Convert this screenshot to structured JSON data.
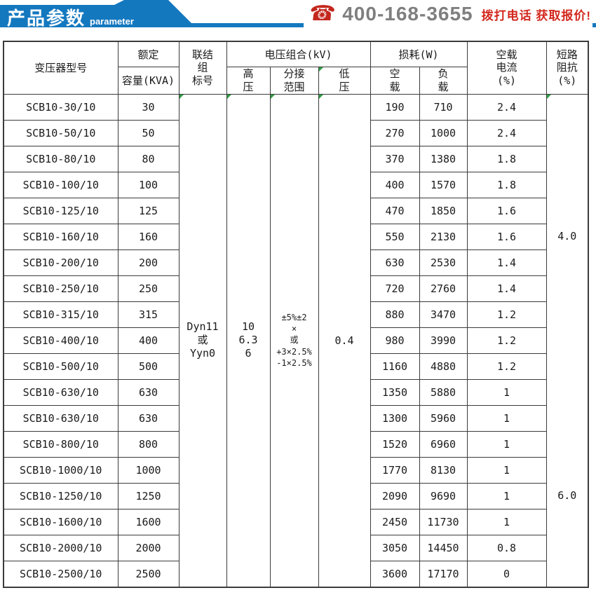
{
  "banner": {
    "title": "产品参数",
    "subtitle": "parameter",
    "phone": "400-168-3655",
    "cta": "拨打电话 获取报价!",
    "colors": {
      "banner_blue": "#1478bf",
      "phone_gray": "#7f7f7f",
      "cta_red": "#d3281e",
      "icon_red": "#c3271d"
    }
  },
  "table": {
    "colors": {
      "border": "#3b3b3b",
      "corner_mark_green": "#2f9e44"
    },
    "headers": {
      "model": "变压器型号",
      "rated": "额定",
      "capacity": "容量(KVA)",
      "vector_group": "联结\n组\n标号",
      "voltage_combo": "电压组合(kV)",
      "hv": "高\n压",
      "tap_range": "分接\n范围",
      "lv": "低\n压",
      "loss": "损耗(W)",
      "no_load": "空\n载",
      "load": "负\n载",
      "no_load_current": "空载\n电流\n(%)",
      "impedance": "短路\n阻抗\n(%)"
    },
    "merged": {
      "vector_group": "Dyn11\n或\nYyn0",
      "hv": "10\n6.3\n6",
      "tap_range": "±5%±2\n×\n或\n+3×2.5%\n-1×2.5%",
      "lv": "0.4",
      "impedance_top": "4.0",
      "impedance_bottom": "6.0"
    },
    "rows": [
      {
        "model": "SCB10-30/10",
        "kva": "30",
        "no_load": "190",
        "load": "710",
        "current": "2.4"
      },
      {
        "model": "SCB10-50/10",
        "kva": "50",
        "no_load": "270",
        "load": "1000",
        "current": "2.4"
      },
      {
        "model": "SCB10-80/10",
        "kva": "80",
        "no_load": "370",
        "load": "1380",
        "current": "1.8"
      },
      {
        "model": "SCB10-100/10",
        "kva": "100",
        "no_load": "400",
        "load": "1570",
        "current": "1.8"
      },
      {
        "model": "SCB10-125/10",
        "kva": "125",
        "no_load": "470",
        "load": "1850",
        "current": "1.6"
      },
      {
        "model": "SCB10-160/10",
        "kva": "160",
        "no_load": "550",
        "load": "2130",
        "current": "1.6"
      },
      {
        "model": "SCB10-200/10",
        "kva": "200",
        "no_load": "630",
        "load": "2530",
        "current": "1.4"
      },
      {
        "model": "SCB10-250/10",
        "kva": "250",
        "no_load": "720",
        "load": "2760",
        "current": "1.4"
      },
      {
        "model": "SCB10-315/10",
        "kva": "315",
        "no_load": "880",
        "load": "3470",
        "current": "1.2"
      },
      {
        "model": "SCB10-400/10",
        "kva": "400",
        "no_load": "980",
        "load": "3990",
        "current": "1.2"
      },
      {
        "model": "SCB10-500/10",
        "kva": "500",
        "no_load": "1160",
        "load": "4880",
        "current": "1.2"
      },
      {
        "model": "SCB10-630/10",
        "kva": "630",
        "no_load": "1350",
        "load": "5880",
        "current": "1"
      },
      {
        "model": "SCB10-630/10",
        "kva": "630",
        "no_load": "1300",
        "load": "5960",
        "current": "1"
      },
      {
        "model": "SCB10-800/10",
        "kva": "800",
        "no_load": "1520",
        "load": "6960",
        "current": "1"
      },
      {
        "model": "SCB10-1000/10",
        "kva": "1000",
        "no_load": "1770",
        "load": "8130",
        "current": "1"
      },
      {
        "model": "SCB10-1250/10",
        "kva": "1250",
        "no_load": "2090",
        "load": "9690",
        "current": "1"
      },
      {
        "model": "SCB10-1600/10",
        "kva": "1600",
        "no_load": "2450",
        "load": "11730",
        "current": "1"
      },
      {
        "model": "SCB10-2000/10",
        "kva": "2000",
        "no_load": "3050",
        "load": "14450",
        "current": "0.8"
      },
      {
        "model": "SCB10-2500/10",
        "kva": "2500",
        "no_load": "3600",
        "load": "17170",
        "current": "0"
      }
    ]
  }
}
